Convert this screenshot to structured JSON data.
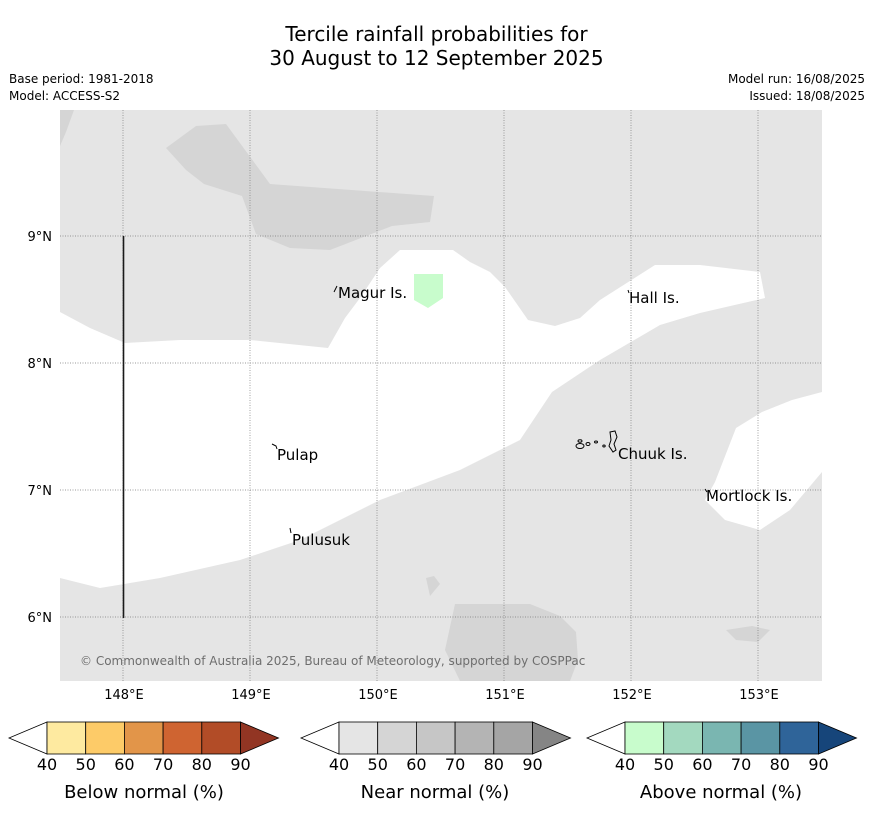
{
  "title": {
    "line1": "Tercile rainfall probabilities for",
    "line2": "30 August to 12 September 2025"
  },
  "meta": {
    "base_period": "Base period: 1981-2018",
    "model": "Model: ACCESS-S2",
    "model_run": "Model run: 16/08/2025",
    "issued": "Issued: 18/08/2025"
  },
  "map": {
    "x_ticks": [
      "148°E",
      "149°E",
      "150°E",
      "151°E",
      "152°E",
      "153°E"
    ],
    "y_ticks": [
      "9°N",
      "8°N",
      "7°N",
      "6°N"
    ],
    "places": {
      "magur": "Magur Is.",
      "hall": "Hall Is.",
      "pulap": "Pulap",
      "chuuk": "Chuuk Is.",
      "mortlock": "Mortlock Is.",
      "pulusuk": "Pulusuk"
    },
    "copyright": "© Commonwealth of Australia 2025, Bureau of Meteorology, supported by COSPPac",
    "colors": {
      "near_normal_40": "#e5e5e5",
      "near_normal_50": "#d5d5d5",
      "above_normal_40": "#c8fccc",
      "background": "#ffffff"
    }
  },
  "legend": {
    "ticks": [
      "40",
      "50",
      "60",
      "70",
      "80",
      "90"
    ],
    "below": {
      "label": "Below normal (%)",
      "colors": [
        "#ffffff",
        "#feeaa0",
        "#fdcb68",
        "#e29549",
        "#cf6431",
        "#b24c27",
        "#923523"
      ]
    },
    "near": {
      "label": "Near normal (%)",
      "colors": [
        "#ffffff",
        "#e5e5e5",
        "#d5d5d5",
        "#c6c6c6",
        "#b4b4b4",
        "#a5a5a5",
        "#858585"
      ]
    },
    "above": {
      "label": "Above normal (%)",
      "colors": [
        "#ffffff",
        "#c8fccc",
        "#a3d9bf",
        "#7ab6b1",
        "#5a95a4",
        "#2f6499",
        "#16457a"
      ]
    }
  }
}
